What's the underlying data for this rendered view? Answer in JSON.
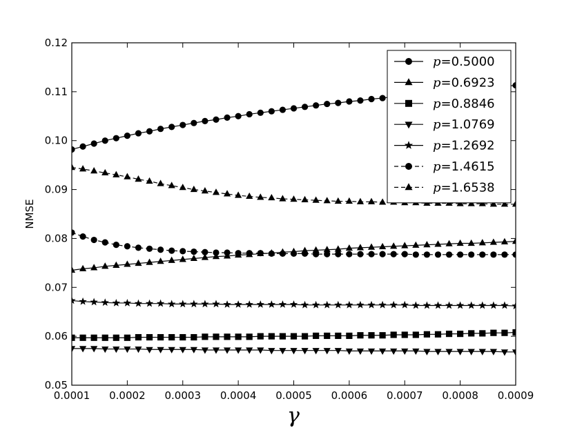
{
  "chart_data": {
    "type": "line",
    "xlabel": "γ",
    "ylabel": "NMSE",
    "xlim": [
      0.0001,
      0.0009
    ],
    "ylim": [
      0.05,
      0.12
    ],
    "xticks": [
      "0.0001",
      "0.0002",
      "0.0003",
      "0.0004",
      "0.0005",
      "0.0006",
      "0.0007",
      "0.0008",
      "0.0009"
    ],
    "yticks": [
      "0.05",
      "0.06",
      "0.07",
      "0.08",
      "0.09",
      "0.10",
      "0.11",
      "0.12"
    ],
    "legend_position": "top-right",
    "x_start": 0.0001,
    "x_step": 2e-05,
    "series": [
      {
        "name": "p=0.5000",
        "p_symbol": "p",
        "value_label": "=0.5000",
        "marker": "circle",
        "dash": "solid",
        "values": [
          0.0982,
          0.0988,
          0.0994,
          0.1,
          0.1005,
          0.101,
          0.1015,
          0.1019,
          0.1024,
          0.1028,
          0.1032,
          0.1036,
          0.104,
          0.1043,
          0.1047,
          0.105,
          0.1054,
          0.1057,
          0.106,
          0.1063,
          0.1066,
          0.1069,
          0.1072,
          0.1075,
          0.1077,
          0.108,
          0.1082,
          0.1085,
          0.1087,
          0.109,
          0.1092,
          0.1094,
          0.1096,
          0.1099,
          0.1101,
          0.1103,
          0.1105,
          0.1107,
          0.1109,
          0.1111,
          0.1113
        ]
      },
      {
        "name": "p=0.6923",
        "p_symbol": "p",
        "value_label": "=0.6923",
        "marker": "triangle-up",
        "dash": "solid",
        "values": [
          0.0735,
          0.0738,
          0.074,
          0.0743,
          0.0745,
          0.0747,
          0.0749,
          0.0751,
          0.0753,
          0.0755,
          0.0757,
          0.0759,
          0.0761,
          0.0763,
          0.0764,
          0.0766,
          0.0767,
          0.0769,
          0.077,
          0.0772,
          0.0773,
          0.0775,
          0.0776,
          0.0777,
          0.0778,
          0.078,
          0.0781,
          0.0782,
          0.0783,
          0.0784,
          0.0785,
          0.0786,
          0.0787,
          0.0788,
          0.0789,
          0.079,
          0.079,
          0.0791,
          0.0792,
          0.0793,
          0.0794
        ]
      },
      {
        "name": "p=0.8846",
        "p_symbol": "p",
        "value_label": "=0.8846",
        "marker": "square",
        "dash": "solid",
        "values": [
          0.0597,
          0.0597,
          0.0597,
          0.0597,
          0.0597,
          0.0597,
          0.0598,
          0.0598,
          0.0598,
          0.0598,
          0.0598,
          0.0598,
          0.0599,
          0.0599,
          0.0599,
          0.0599,
          0.0599,
          0.06,
          0.06,
          0.06,
          0.06,
          0.06,
          0.0601,
          0.0601,
          0.0601,
          0.0601,
          0.0602,
          0.0602,
          0.0602,
          0.0603,
          0.0603,
          0.0603,
          0.0604,
          0.0604,
          0.0605,
          0.0605,
          0.0606,
          0.0606,
          0.0607,
          0.0607,
          0.0608
        ]
      },
      {
        "name": "p=1.0769",
        "p_symbol": "p",
        "value_label": "=1.0769",
        "marker": "triangle-down",
        "dash": "solid",
        "values": [
          0.0575,
          0.0575,
          0.0575,
          0.0574,
          0.0574,
          0.0574,
          0.0574,
          0.0573,
          0.0573,
          0.0573,
          0.0573,
          0.0573,
          0.0572,
          0.0572,
          0.0572,
          0.0572,
          0.0572,
          0.0572,
          0.0571,
          0.0571,
          0.0571,
          0.0571,
          0.0571,
          0.0571,
          0.0571,
          0.057,
          0.057,
          0.057,
          0.057,
          0.057,
          0.057,
          0.057,
          0.0569,
          0.0569,
          0.0569,
          0.0569,
          0.0569,
          0.0569,
          0.0569,
          0.0568,
          0.0568
        ]
      },
      {
        "name": "p=1.2692",
        "p_symbol": "p",
        "value_label": "=1.2692",
        "marker": "star",
        "dash": "solid",
        "values": [
          0.0673,
          0.0671,
          0.067,
          0.0669,
          0.0668,
          0.0668,
          0.0667,
          0.0667,
          0.0667,
          0.0666,
          0.0666,
          0.0666,
          0.0666,
          0.0666,
          0.0665,
          0.0665,
          0.0665,
          0.0665,
          0.0665,
          0.0665,
          0.0665,
          0.0664,
          0.0664,
          0.0664,
          0.0664,
          0.0664,
          0.0664,
          0.0664,
          0.0664,
          0.0664,
          0.0664,
          0.0663,
          0.0663,
          0.0663,
          0.0663,
          0.0663,
          0.0663,
          0.0663,
          0.0663,
          0.0663,
          0.0662
        ]
      },
      {
        "name": "p=1.4615",
        "p_symbol": "p",
        "value_label": "=1.4615",
        "marker": "circle",
        "dash": "dashed",
        "values": [
          0.0812,
          0.0804,
          0.0797,
          0.0792,
          0.0787,
          0.0784,
          0.0781,
          0.0779,
          0.0777,
          0.0775,
          0.0774,
          0.0773,
          0.0772,
          0.0771,
          0.0771,
          0.077,
          0.077,
          0.077,
          0.0769,
          0.0769,
          0.0769,
          0.0769,
          0.0768,
          0.0768,
          0.0768,
          0.0768,
          0.0768,
          0.0768,
          0.0768,
          0.0768,
          0.0768,
          0.0767,
          0.0767,
          0.0767,
          0.0767,
          0.0767,
          0.0767,
          0.0767,
          0.0767,
          0.0767,
          0.0767
        ]
      },
      {
        "name": "p=1.6538",
        "p_symbol": "p",
        "value_label": "=1.6538",
        "marker": "triangle-up",
        "dash": "dashed",
        "values": [
          0.0945,
          0.0942,
          0.0938,
          0.0934,
          0.093,
          0.0926,
          0.0921,
          0.0917,
          0.0912,
          0.0908,
          0.0904,
          0.09,
          0.0897,
          0.0894,
          0.0891,
          0.0888,
          0.0886,
          0.0884,
          0.0883,
          0.0881,
          0.088,
          0.0879,
          0.0878,
          0.0877,
          0.0876,
          0.0876,
          0.0875,
          0.0875,
          0.0874,
          0.0874,
          0.0873,
          0.0873,
          0.0872,
          0.0872,
          0.0872,
          0.0871,
          0.0871,
          0.0871,
          0.087,
          0.087,
          0.087
        ]
      }
    ]
  },
  "colors": {
    "line": "#000000",
    "background": "#ffffff"
  }
}
